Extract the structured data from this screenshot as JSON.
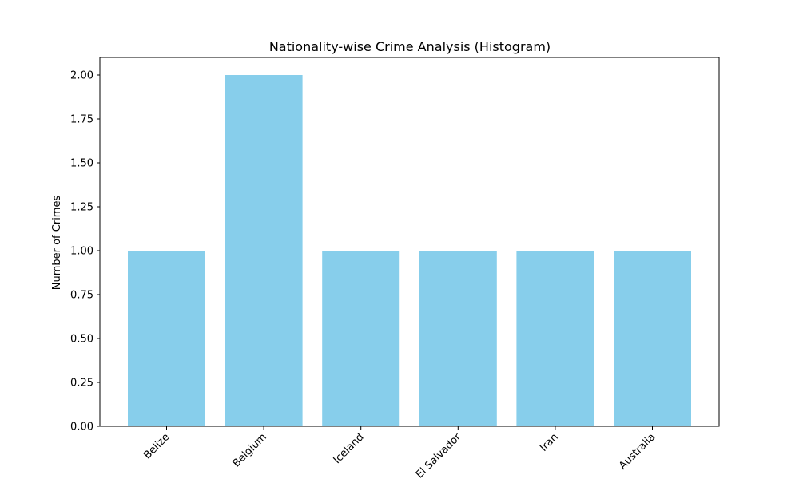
{
  "chart_data": {
    "type": "bar",
    "title": "Nationality-wise Crime Analysis (Histogram)",
    "xlabel": "",
    "ylabel": "Number of Crimes",
    "categories": [
      "Belize",
      "Belgium",
      "Iceland",
      "El Salvador",
      "Iran",
      "Australia"
    ],
    "values": [
      1,
      2,
      1,
      1,
      1,
      1
    ],
    "ylim": [
      0,
      2.1
    ],
    "yticks": [
      "0.00",
      "0.25",
      "0.50",
      "0.75",
      "1.00",
      "1.25",
      "1.50",
      "1.75",
      "2.00"
    ],
    "grid": false,
    "bar_color": "#87ceeb",
    "x_tick_rotation_deg": 45
  }
}
